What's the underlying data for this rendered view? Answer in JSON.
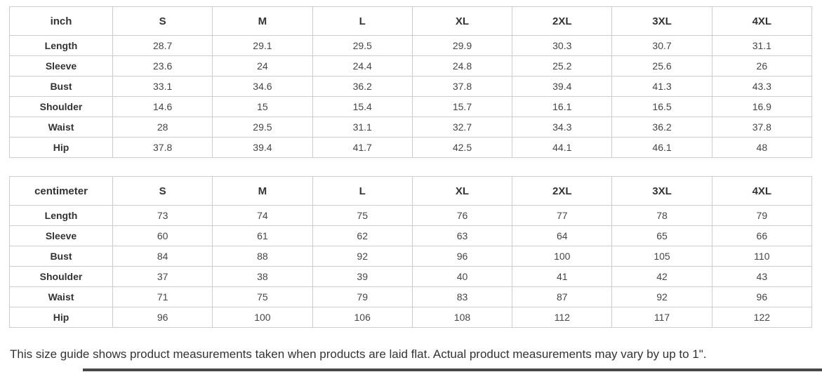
{
  "theme": {
    "background": "#ffffff",
    "border_color": "#cccccc",
    "header_text_color": "#333333",
    "value_text_color": "#454545",
    "scrollbar_color": "#474747"
  },
  "tables": [
    {
      "unit": "inch",
      "columns": [
        "S",
        "M",
        "L",
        "XL",
        "2XL",
        "3XL",
        "4XL"
      ],
      "rows": [
        {
          "label": "Length",
          "values": [
            "28.7",
            "29.1",
            "29.5",
            "29.9",
            "30.3",
            "30.7",
            "31.1"
          ]
        },
        {
          "label": "Sleeve",
          "values": [
            "23.6",
            "24",
            "24.4",
            "24.8",
            "25.2",
            "25.6",
            "26"
          ]
        },
        {
          "label": "Bust",
          "values": [
            "33.1",
            "34.6",
            "36.2",
            "37.8",
            "39.4",
            "41.3",
            "43.3"
          ]
        },
        {
          "label": "Shoulder",
          "values": [
            "14.6",
            "15",
            "15.4",
            "15.7",
            "16.1",
            "16.5",
            "16.9"
          ]
        },
        {
          "label": "Waist",
          "values": [
            "28",
            "29.5",
            "31.1",
            "32.7",
            "34.3",
            "36.2",
            "37.8"
          ]
        },
        {
          "label": "Hip",
          "values": [
            "37.8",
            "39.4",
            "41.7",
            "42.5",
            "44.1",
            "46.1",
            "48"
          ]
        }
      ]
    },
    {
      "unit": "centimeter",
      "columns": [
        "S",
        "M",
        "L",
        "XL",
        "2XL",
        "3XL",
        "4XL"
      ],
      "rows": [
        {
          "label": "Length",
          "values": [
            "73",
            "74",
            "75",
            "76",
            "77",
            "78",
            "79"
          ]
        },
        {
          "label": "Sleeve",
          "values": [
            "60",
            "61",
            "62",
            "63",
            "64",
            "65",
            "66"
          ]
        },
        {
          "label": "Bust",
          "values": [
            "84",
            "88",
            "92",
            "96",
            "100",
            "105",
            "110"
          ]
        },
        {
          "label": "Shoulder",
          "values": [
            "37",
            "38",
            "39",
            "40",
            "41",
            "42",
            "43"
          ]
        },
        {
          "label": "Waist",
          "values": [
            "71",
            "75",
            "79",
            "83",
            "87",
            "92",
            "96"
          ]
        },
        {
          "label": "Hip",
          "values": [
            "96",
            "100",
            "106",
            "108",
            "112",
            "117",
            "122"
          ]
        }
      ]
    }
  ],
  "footer": {
    "note": "This size guide shows product measurements taken when products are laid flat. Actual product measurements may vary by up to 1\"."
  }
}
